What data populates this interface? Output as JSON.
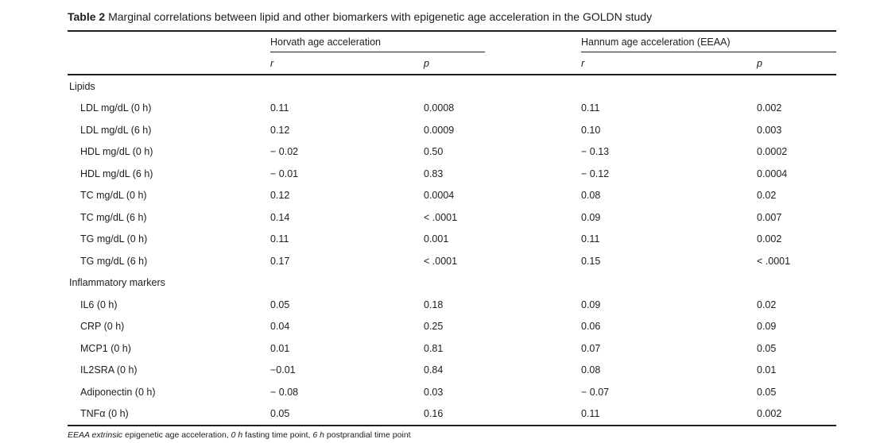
{
  "title": {
    "label": "Table 2",
    "text": "Marginal correlations between lipid and other biomarkers with epigenetic age acceleration in the GOLDN study"
  },
  "table": {
    "col_groups": [
      {
        "label": "Horvath age acceleration",
        "subcols": [
          "r",
          "p"
        ]
      },
      {
        "label": "Hannum age acceleration (EEAA)",
        "subcols": [
          "r",
          "p"
        ]
      }
    ],
    "sections": [
      {
        "label": "Lipids",
        "rows": [
          {
            "label": "LDL mg/dL (0 h)",
            "values": [
              "0.11",
              "0.0008",
              "0.11",
              "0.002"
            ]
          },
          {
            "label": "LDL mg/dL (6 h)",
            "values": [
              "0.12",
              "0.0009",
              "0.10",
              "0.003"
            ]
          },
          {
            "label": "HDL mg/dL (0 h)",
            "values": [
              "− 0.02",
              "0.50",
              "− 0.13",
              "0.0002"
            ]
          },
          {
            "label": "HDL mg/dL (6 h)",
            "values": [
              "− 0.01",
              "0.83",
              "− 0.12",
              "0.0004"
            ]
          },
          {
            "label": "TC mg/dL (0 h)",
            "values": [
              "0.12",
              "0.0004",
              "0.08",
              "0.02"
            ]
          },
          {
            "label": "TC mg/dL (6 h)",
            "values": [
              "0.14",
              "< .0001",
              "0.09",
              "0.007"
            ]
          },
          {
            "label": "TG mg/dL (0 h)",
            "values": [
              "0.11",
              "0.001",
              "0.11",
              "0.002"
            ]
          },
          {
            "label": "TG mg/dL (6 h)",
            "values": [
              "0.17",
              "< .0001",
              "0.15",
              "< .0001"
            ]
          }
        ]
      },
      {
        "label": "Inflammatory markers",
        "rows": [
          {
            "label": "IL6 (0 h)",
            "values": [
              "0.05",
              "0.18",
              "0.09",
              "0.02"
            ]
          },
          {
            "label": "CRP (0 h)",
            "values": [
              "0.04",
              "0.25",
              "0.06",
              "0.09"
            ]
          },
          {
            "label": "MCP1 (0 h)",
            "values": [
              "0.01",
              "0.81",
              "0.07",
              "0.05"
            ]
          },
          {
            "label": "IL2SRA (0 h)",
            "values": [
              "−0.01",
              "0.84",
              "0.08",
              "0.01"
            ]
          },
          {
            "label": "Adiponectin (0 h)",
            "values": [
              "− 0.08",
              "0.03",
              "− 0.07",
              "0.05"
            ]
          },
          {
            "label": "TNFα (0 h)",
            "values": [
              "0.05",
              "0.16",
              "0.11",
              "0.002"
            ]
          }
        ]
      }
    ],
    "footnote_segments": [
      {
        "text": "EEAA extrinsic",
        "italic": true
      },
      {
        "text": " epigenetic age acceleration, ",
        "italic": false
      },
      {
        "text": "0 h",
        "italic": true
      },
      {
        "text": " fasting time point, ",
        "italic": false
      },
      {
        "text": "6 h",
        "italic": true
      },
      {
        "text": " postprandial time point",
        "italic": false
      }
    ]
  },
  "colors": {
    "text": "#1d1d1b",
    "rule": "#1d1d1b",
    "background": "#ffffff"
  }
}
